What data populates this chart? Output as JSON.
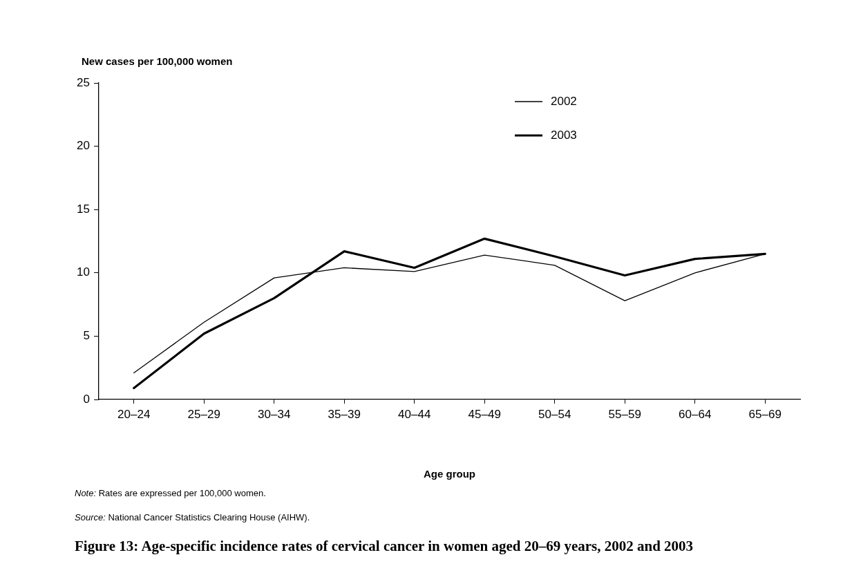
{
  "chart_data": {
    "type": "line",
    "title": "Figure 13: Age-specific incidence rates of cervical cancer in women aged 20–69 years, 2002 and 2003",
    "ylabel": "New cases per 100,000 women",
    "xlabel": "Age group",
    "categories": [
      "20–24",
      "25–29",
      "30–34",
      "35–39",
      "40–44",
      "45–49",
      "50–54",
      "55–59",
      "60–64",
      "65–69"
    ],
    "series": [
      {
        "name": "2002",
        "color": "#000000",
        "values": [
          2.1,
          6.1,
          9.6,
          10.4,
          10.1,
          11.4,
          10.6,
          7.8,
          10.0,
          11.5
        ]
      },
      {
        "name": "2003",
        "color": "#000000",
        "values": [
          0.9,
          5.2,
          8.0,
          11.7,
          10.4,
          12.7,
          11.3,
          9.8,
          11.1,
          11.5
        ]
      }
    ],
    "ylim": [
      0,
      25
    ],
    "yticks": [
      0,
      5,
      10,
      15,
      20,
      25
    ],
    "grid": false,
    "legend": "top right",
    "marker": "none",
    "line_style": "solid",
    "annotations": [
      "Note: Rates are expressed per 100,000 women.",
      "Source: National Cancer Statistics Clearing House (AIHW)."
    ]
  }
}
